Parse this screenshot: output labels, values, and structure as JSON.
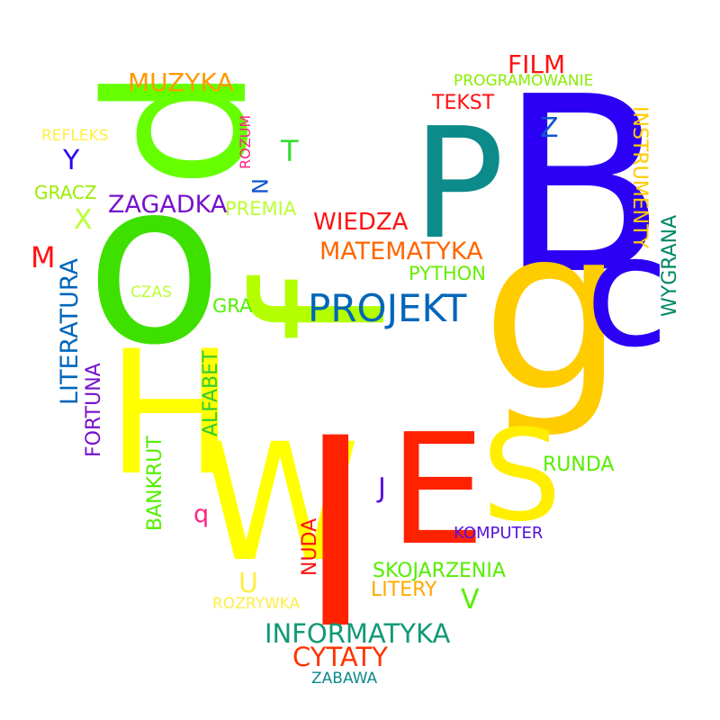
{
  "words": {
    "b_big": {
      "text": "B",
      "color": "#2b00f5"
    },
    "p_big": {
      "text": "P",
      "color": "#0d8a8a"
    },
    "d_big": {
      "text": "d",
      "color": "#66ff00"
    },
    "o_big": {
      "text": "o",
      "color": "#3ee000"
    },
    "f_big": {
      "text": "f",
      "color": "#b3ff00"
    },
    "g_big": {
      "text": "g",
      "color": "#ffcc00"
    },
    "c_big": {
      "text": "c",
      "color": "#2b00f5"
    },
    "h_big": {
      "text": "H",
      "color": "#ffff00"
    },
    "w_big": {
      "text": "W",
      "color": "#ffff00"
    },
    "i_big": {
      "text": "I",
      "color": "#ff2200"
    },
    "e_big": {
      "text": "E",
      "color": "#ff2200"
    },
    "s_big": {
      "text": "S",
      "color": "#ffee00"
    },
    "projekt": {
      "text": "PROJEKT",
      "color": "#0066bb"
    },
    "muzyka": {
      "text": "MUZYKA",
      "color": "#ff9900"
    },
    "film": {
      "text": "FILM",
      "color": "#ff1111"
    },
    "programowanie": {
      "text": "PROGRAMOWANIE",
      "color": "#88ee00"
    },
    "tekst": {
      "text": "TEKST",
      "color": "#ff1111"
    },
    "z": {
      "text": "Z",
      "color": "#1155cc"
    },
    "instrumenty": {
      "text": "INSTRUMENTY",
      "color": "#ffcc00"
    },
    "wygrana": {
      "text": "WYGRANA",
      "color": "#008866"
    },
    "refleks": {
      "text": "REFLEKS",
      "color": "#ffee44"
    },
    "rozum": {
      "text": "ROZUM",
      "color": "#ff2288"
    },
    "t": {
      "text": "T",
      "color": "#33dd33"
    },
    "y": {
      "text": "Y",
      "color": "#2b00f5"
    },
    "n": {
      "text": "N",
      "color": "#1155cc"
    },
    "gracz": {
      "text": "GRACZ",
      "color": "#99ee00"
    },
    "zagadka": {
      "text": "ZAGADKA",
      "color": "#7711cc"
    },
    "premia": {
      "text": "PREMIA",
      "color": "#bbff33"
    },
    "wiedza": {
      "text": "WIEDZA",
      "color": "#ff1111"
    },
    "x": {
      "text": "X",
      "color": "#bbff33"
    },
    "m": {
      "text": "M",
      "color": "#ff1111"
    },
    "matematyka": {
      "text": "MATEMATYKA",
      "color": "#ff6600"
    },
    "python": {
      "text": "PYTHON",
      "color": "#66ee00"
    },
    "literatura": {
      "text": "LITERATURA",
      "color": "#0066bb"
    },
    "czas": {
      "text": "CZAS",
      "color": "#bbff33"
    },
    "gra": {
      "text": "GRA",
      "color": "#55ee00"
    },
    "fortuna": {
      "text": "FORTUNA",
      "color": "#7711cc"
    },
    "alfabet": {
      "text": "ALFABET",
      "color": "#33cc33"
    },
    "bankrut": {
      "text": "BANKRUT",
      "color": "#55ee00"
    },
    "runda": {
      "text": "RUNDA",
      "color": "#55ee00"
    },
    "j": {
      "text": "J",
      "color": "#5511dd"
    },
    "q": {
      "text": "q",
      "color": "#ff2288"
    },
    "komputer": {
      "text": "KOMPUTER",
      "color": "#5511dd"
    },
    "nuda": {
      "text": "NUDA",
      "color": "#ff1111"
    },
    "u": {
      "text": "U",
      "color": "#ffee44"
    },
    "skojarzenia": {
      "text": "SKOJARZENIA",
      "color": "#55ee00"
    },
    "litery": {
      "text": "LITERY",
      "color": "#ffaa00"
    },
    "v": {
      "text": "V",
      "color": "#55ee00"
    },
    "rozrywka": {
      "text": "ROZRYWKA",
      "color": "#ffee44"
    },
    "informatyka": {
      "text": "INFORMATYKA",
      "color": "#119977"
    },
    "cytaty": {
      "text": "CYTATY",
      "color": "#ff3300"
    },
    "zabawa": {
      "text": "ZABAWA",
      "color": "#0d8a8a"
    }
  }
}
